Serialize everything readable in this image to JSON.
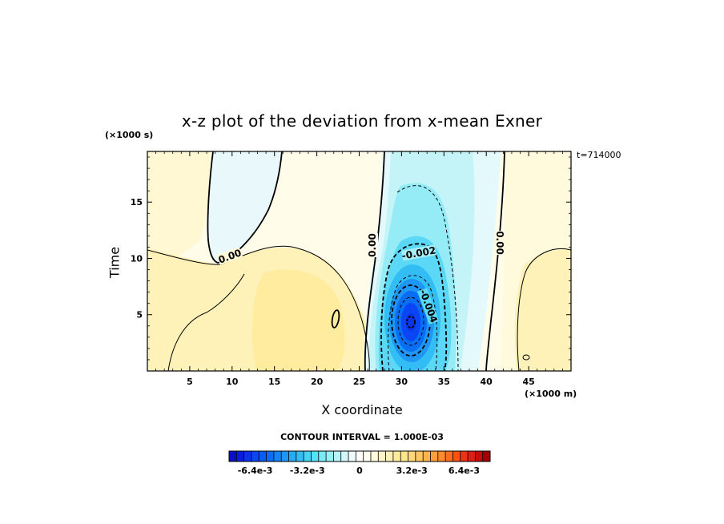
{
  "chart_data": {
    "type": "heatmap",
    "title": "x-z plot of the deviation from x-mean Exner",
    "xlabel": "X coordinate",
    "ylabel": "Time",
    "x_unit_label": "(×1000 m)",
    "y_unit_label": "(×1000 s)",
    "time_stamp": "t=714000",
    "xlim": [
      0,
      50
    ],
    "ylim": [
      0,
      19.5
    ],
    "x_ticks": [
      5,
      10,
      15,
      20,
      25,
      30,
      35,
      40,
      45
    ],
    "y_ticks": [
      5,
      10,
      15
    ],
    "contour_interval_text": "CONTOUR INTERVAL = 1.000E-03",
    "contour_labels": [
      "0.00",
      "0.00",
      "-0.002",
      "-0.004",
      "0.00"
    ],
    "colorbar": {
      "range": [
        -0.008,
        0.008
      ],
      "tick_labels": [
        "-6.4e-3",
        "-3.2e-3",
        "0",
        "3.2e-3",
        "6.4e-3"
      ],
      "tick_values": [
        -0.0064,
        -0.0032,
        0,
        0.0032,
        0.0064
      ],
      "colors": [
        "#0a10c8",
        "#0a1ee0",
        "#0a32f0",
        "#0a46f5",
        "#0a5af5",
        "#0a6ef5",
        "#1484f5",
        "#1e96f5",
        "#28aaf5",
        "#32bef5",
        "#46d2f5",
        "#5ae0f5",
        "#78ebf5",
        "#96f0f8",
        "#b4f5fa",
        "#d2f8fc",
        "#f0fcfc",
        "#ffffff",
        "#fffff0",
        "#fffadc",
        "#fff5c8",
        "#fff0b4",
        "#ffeba0",
        "#ffe68c",
        "#ffd778",
        "#ffc864",
        "#ffb450",
        "#ffa03c",
        "#ff8c28",
        "#ff6e1e",
        "#ff5014",
        "#f03214",
        "#dc1e14",
        "#c80a0a",
        "#a00000"
      ]
    }
  }
}
